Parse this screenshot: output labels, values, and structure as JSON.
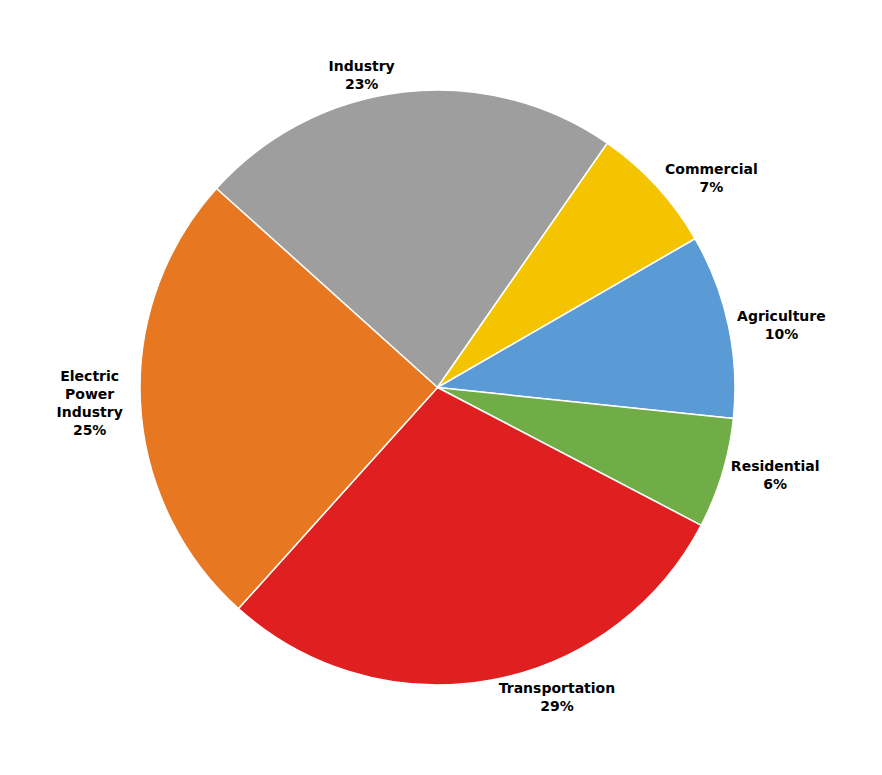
{
  "chart_data": {
    "type": "pie",
    "categories": [
      "Industry",
      "Commercial",
      "Agriculture",
      "Residential",
      "Transportation",
      "Electric\nPower\nIndustry"
    ],
    "values": [
      23,
      7,
      10,
      6,
      29,
      25
    ],
    "value_labels": [
      "23%",
      "7%",
      "10%",
      "6%",
      "29%",
      "25%"
    ],
    "colors": [
      "#9E9E9E",
      "#F5C400",
      "#5B9BD5",
      "#70AD47",
      "#E02020",
      "#E87722"
    ],
    "data_labels": true
  }
}
